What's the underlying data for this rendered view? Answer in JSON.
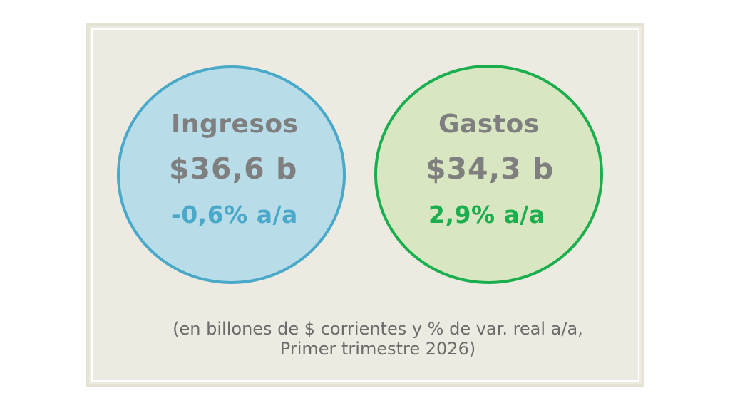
{
  "income": {
    "label": "Ingresos",
    "amount": "$36,6 b",
    "change": "-0,6% a/a",
    "fill_color": "#b8dde9",
    "accent_color": "#4aa8c8"
  },
  "expense": {
    "label": "Gastos",
    "amount": "$34,3 b",
    "change": "2,9% a/a",
    "fill_color": "#d8e6c1",
    "accent_color": "#1aae4e"
  },
  "caption": {
    "line1": "(en billones de $ corrientes y % de var. real a/a,",
    "line2": "Primer trimestre 2026)"
  }
}
